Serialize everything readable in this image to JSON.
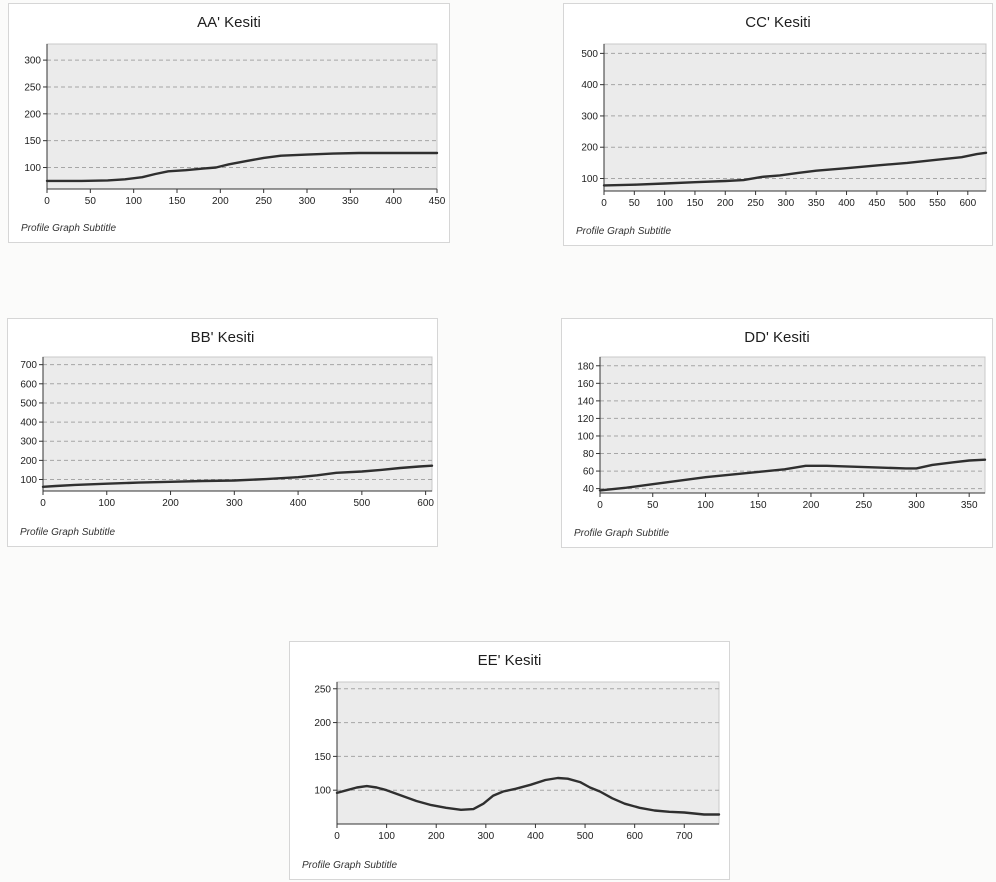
{
  "chart_data": [
    {
      "id": "aa",
      "type": "line",
      "title": "AA' Kesiti",
      "subtitle": "Profile Graph Subtitle",
      "xlim": [
        0,
        450
      ],
      "ylim": [
        60,
        330
      ],
      "xticks": [
        0,
        50,
        100,
        150,
        200,
        250,
        300,
        350,
        400,
        450
      ],
      "yticks": [
        100,
        150,
        200,
        250,
        300
      ],
      "grid": true,
      "series": [
        {
          "x": [
            0,
            40,
            70,
            90,
            110,
            125,
            140,
            160,
            180,
            195,
            210,
            230,
            250,
            270,
            300,
            330,
            360,
            400,
            450
          ],
          "y": [
            75,
            75,
            76,
            78,
            82,
            88,
            93,
            95,
            98,
            100,
            106,
            112,
            118,
            122,
            124,
            126,
            127,
            127,
            127
          ]
        }
      ]
    },
    {
      "id": "cc",
      "type": "line",
      "title": "CC' Kesiti",
      "subtitle": "Profile Graph Subtitle",
      "xlim": [
        0,
        630
      ],
      "ylim": [
        60,
        530
      ],
      "xticks": [
        0,
        50,
        100,
        150,
        200,
        250,
        300,
        350,
        400,
        450,
        500,
        550,
        600
      ],
      "yticks": [
        100,
        200,
        300,
        400,
        500
      ],
      "grid": true,
      "series": [
        {
          "x": [
            0,
            50,
            100,
            150,
            200,
            230,
            260,
            290,
            320,
            350,
            400,
            450,
            500,
            550,
            590,
            615,
            630
          ],
          "y": [
            78,
            80,
            84,
            88,
            92,
            95,
            105,
            110,
            118,
            125,
            133,
            142,
            150,
            160,
            168,
            178,
            182
          ]
        }
      ]
    },
    {
      "id": "bb",
      "type": "line",
      "title": "BB' Kesiti",
      "subtitle": "Profile Graph Subtitle",
      "xlim": [
        0,
        610
      ],
      "ylim": [
        40,
        740
      ],
      "xticks": [
        0,
        100,
        200,
        300,
        400,
        500,
        600
      ],
      "yticks": [
        100,
        200,
        300,
        400,
        500,
        600,
        700
      ],
      "grid": true,
      "series": [
        {
          "x": [
            0,
            20,
            50,
            100,
            150,
            200,
            250,
            300,
            350,
            400,
            430,
            460,
            500,
            530,
            560,
            590,
            610
          ],
          "y": [
            62,
            66,
            72,
            78,
            84,
            88,
            92,
            95,
            102,
            112,
            122,
            135,
            142,
            150,
            160,
            168,
            172
          ]
        }
      ]
    },
    {
      "id": "dd",
      "type": "line",
      "title": "DD' Kesiti",
      "subtitle": "Profile Graph Subtitle",
      "xlim": [
        0,
        365
      ],
      "ylim": [
        35,
        190
      ],
      "xticks": [
        0,
        50,
        100,
        150,
        200,
        250,
        300,
        350
      ],
      "yticks": [
        40,
        60,
        80,
        100,
        120,
        140,
        160,
        180
      ],
      "grid": true,
      "series": [
        {
          "x": [
            0,
            25,
            50,
            75,
            100,
            125,
            150,
            175,
            195,
            215,
            240,
            265,
            290,
            300,
            315,
            335,
            350,
            365
          ],
          "y": [
            38,
            41,
            45,
            49,
            53,
            56,
            59,
            62,
            66,
            66,
            65,
            64,
            63,
            63,
            67,
            70,
            72,
            73
          ]
        }
      ]
    },
    {
      "id": "ee",
      "type": "line",
      "title": "EE' Kesiti",
      "subtitle": "Profile Graph Subtitle",
      "xlim": [
        0,
        770
      ],
      "ylim": [
        50,
        260
      ],
      "xticks": [
        0,
        100,
        200,
        300,
        400,
        500,
        600,
        700
      ],
      "yticks": [
        100,
        150,
        200,
        250
      ],
      "grid": true,
      "series": [
        {
          "x": [
            0,
            20,
            40,
            60,
            80,
            100,
            130,
            160,
            190,
            220,
            250,
            275,
            295,
            315,
            335,
            360,
            390,
            420,
            445,
            465,
            490,
            510,
            530,
            555,
            580,
            610,
            640,
            670,
            700,
            740,
            770
          ],
          "y": [
            96,
            100,
            104,
            106,
            104,
            100,
            92,
            84,
            78,
            74,
            71,
            72,
            80,
            92,
            98,
            102,
            108,
            115,
            118,
            117,
            112,
            104,
            98,
            88,
            80,
            74,
            70,
            68,
            67,
            64,
            64
          ]
        }
      ]
    }
  ],
  "style": {
    "plot_bg": "#ebebeb",
    "grid_color": "#a6a6a6",
    "line_color": "#2f2f2f",
    "axis_color": "#333333"
  }
}
